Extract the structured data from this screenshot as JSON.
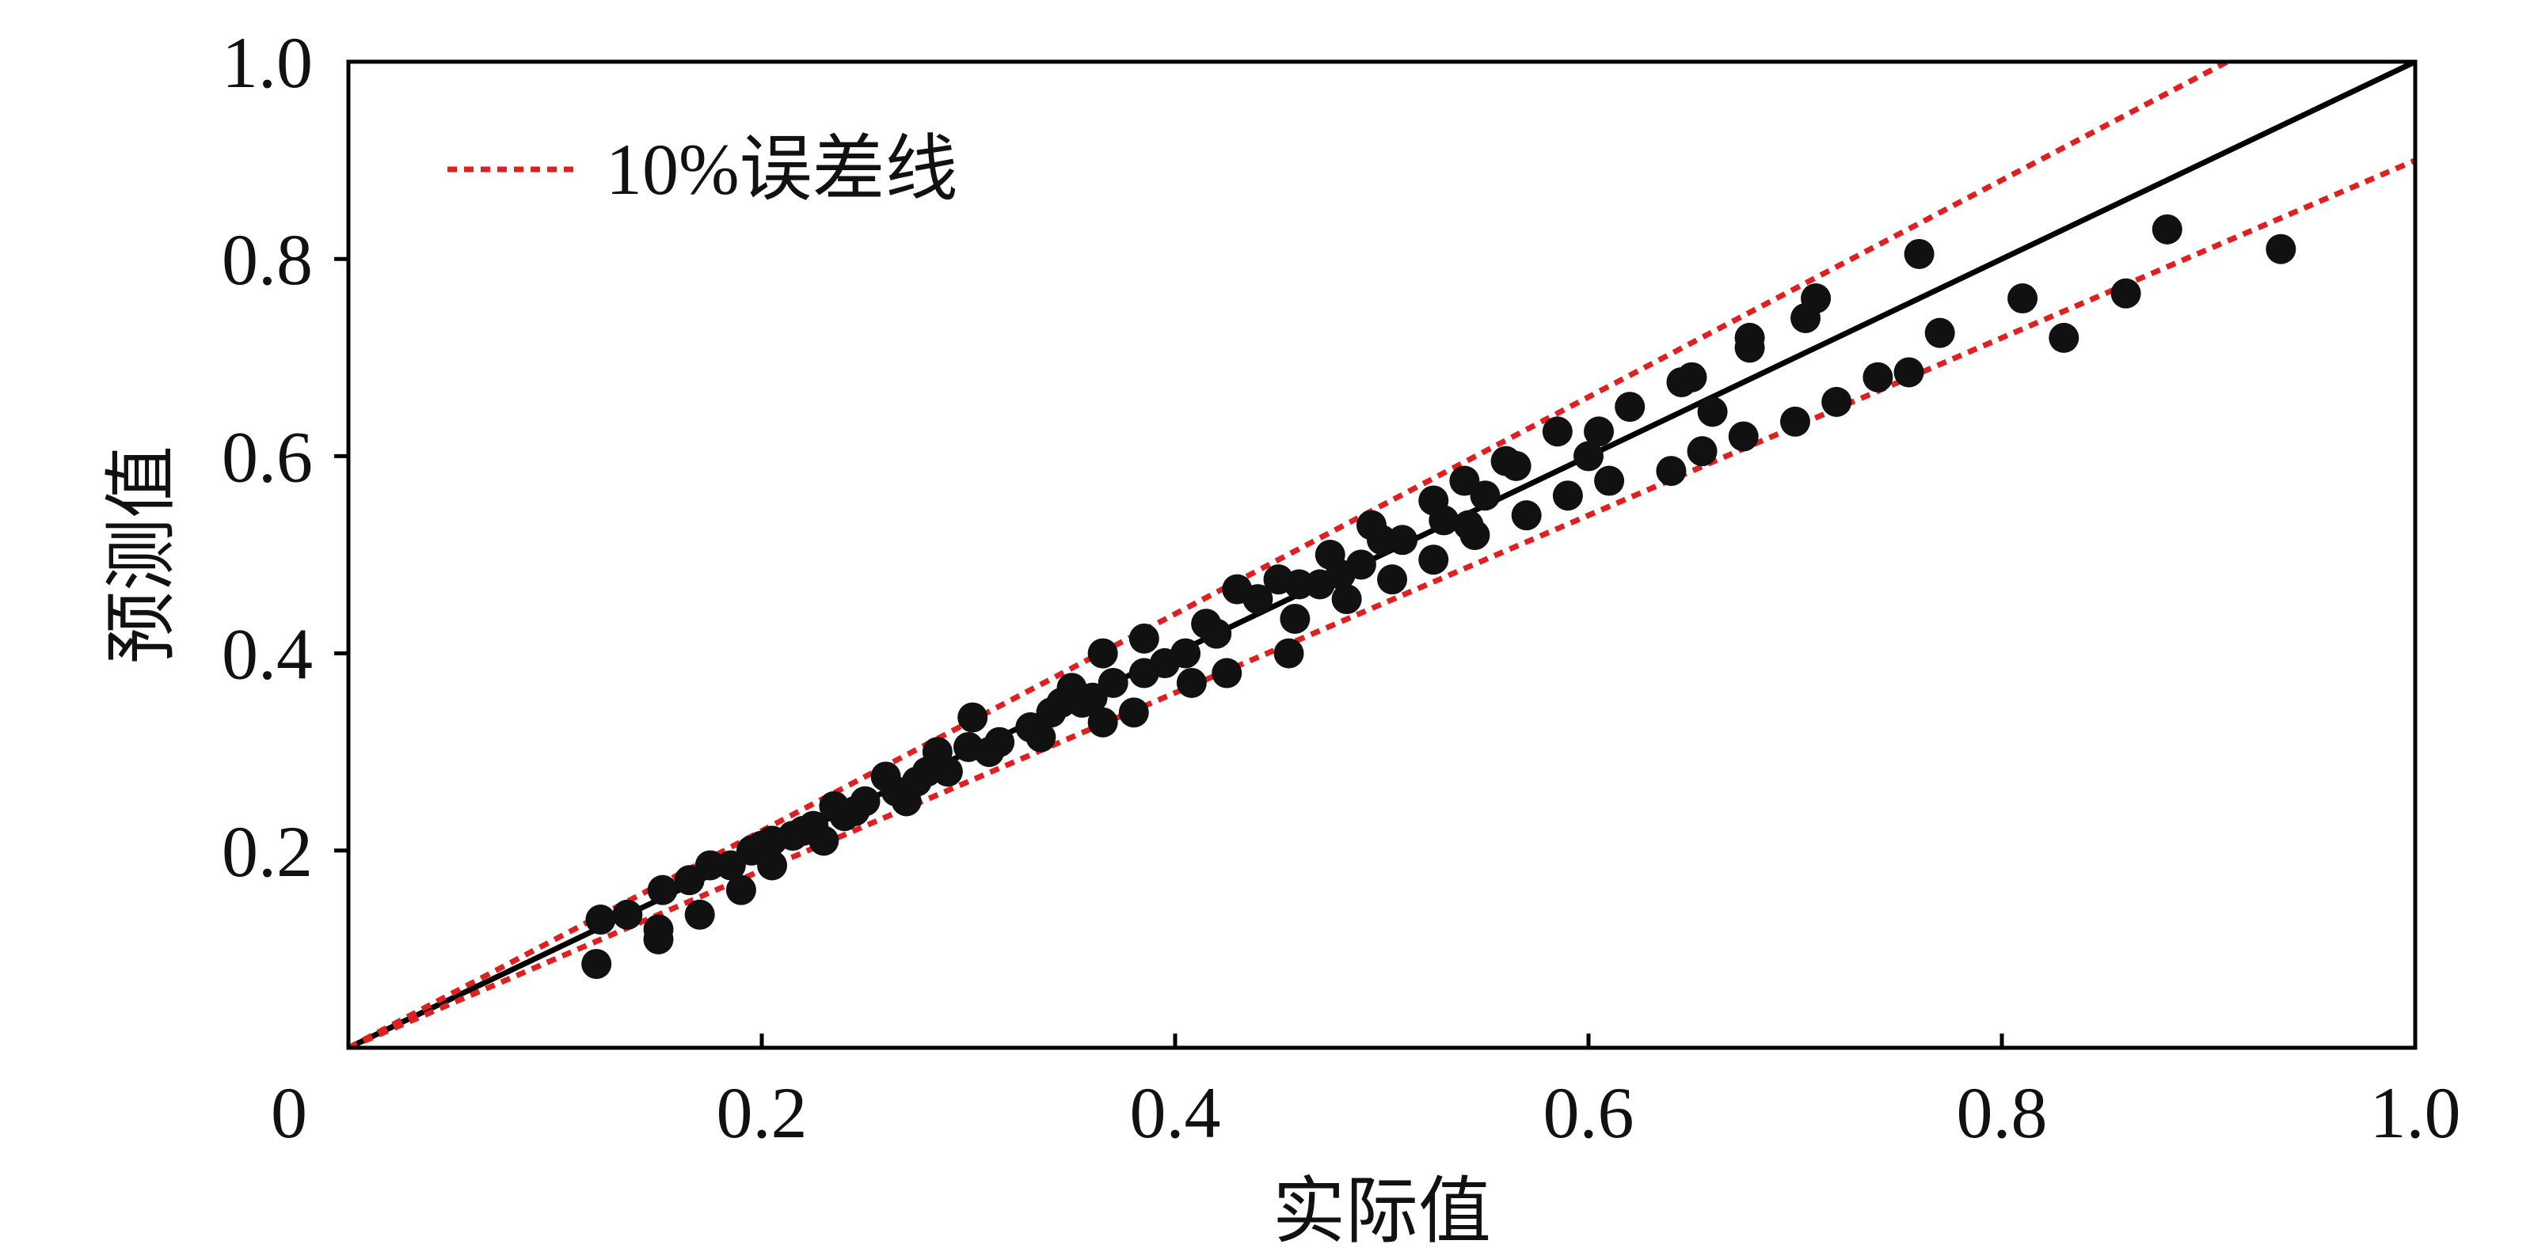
{
  "chart_data": {
    "type": "scatter",
    "xlabel": "实际值",
    "ylabel": "预测值",
    "xlim": [
      0,
      1.0
    ],
    "ylim": [
      0,
      1.0
    ],
    "xticks": [
      {
        "value": 0,
        "label": "0"
      },
      {
        "value": 0.2,
        "label": "0.2"
      },
      {
        "value": 0.4,
        "label": "0.4"
      },
      {
        "value": 0.6,
        "label": "0.6"
      },
      {
        "value": 0.8,
        "label": "0.8"
      },
      {
        "value": 1.0,
        "label": "1.0"
      }
    ],
    "yticks": [
      {
        "value": 0.2,
        "label": "0.2"
      },
      {
        "value": 0.4,
        "label": "0.4"
      },
      {
        "value": 0.6,
        "label": "0.6"
      },
      {
        "value": 0.8,
        "label": "0.8"
      },
      {
        "value": 1.0,
        "label": "1.0"
      }
    ],
    "grid": false,
    "legend": {
      "position": "top-left",
      "label": "10%误差线"
    },
    "reference_lines": [
      {
        "kind": "identity",
        "slope": 1.0,
        "style": "solid",
        "color": "#000000"
      },
      {
        "kind": "error_upper",
        "slope": 1.1,
        "style": "dotted",
        "color": "#e02020"
      },
      {
        "kind": "error_lower",
        "slope": 0.9,
        "style": "dotted",
        "color": "#e02020"
      }
    ],
    "points": [
      [
        0.12,
        0.085
      ],
      [
        0.122,
        0.13
      ],
      [
        0.135,
        0.135
      ],
      [
        0.15,
        0.12
      ],
      [
        0.15,
        0.11
      ],
      [
        0.152,
        0.16
      ],
      [
        0.165,
        0.17
      ],
      [
        0.17,
        0.135
      ],
      [
        0.175,
        0.185
      ],
      [
        0.185,
        0.185
      ],
      [
        0.19,
        0.16
      ],
      [
        0.195,
        0.2
      ],
      [
        0.2,
        0.205
      ],
      [
        0.205,
        0.21
      ],
      [
        0.205,
        0.185
      ],
      [
        0.215,
        0.215
      ],
      [
        0.22,
        0.22
      ],
      [
        0.225,
        0.225
      ],
      [
        0.23,
        0.21
      ],
      [
        0.235,
        0.245
      ],
      [
        0.24,
        0.235
      ],
      [
        0.245,
        0.24
      ],
      [
        0.25,
        0.25
      ],
      [
        0.26,
        0.275
      ],
      [
        0.265,
        0.26
      ],
      [
        0.27,
        0.25
      ],
      [
        0.275,
        0.27
      ],
      [
        0.28,
        0.28
      ],
      [
        0.285,
        0.3
      ],
      [
        0.29,
        0.28
      ],
      [
        0.3,
        0.305
      ],
      [
        0.302,
        0.335
      ],
      [
        0.31,
        0.3
      ],
      [
        0.315,
        0.31
      ],
      [
        0.33,
        0.325
      ],
      [
        0.335,
        0.315
      ],
      [
        0.34,
        0.34
      ],
      [
        0.345,
        0.35
      ],
      [
        0.35,
        0.365
      ],
      [
        0.355,
        0.35
      ],
      [
        0.36,
        0.355
      ],
      [
        0.365,
        0.33
      ],
      [
        0.365,
        0.4
      ],
      [
        0.37,
        0.37
      ],
      [
        0.38,
        0.34
      ],
      [
        0.385,
        0.38
      ],
      [
        0.385,
        0.415
      ],
      [
        0.395,
        0.39
      ],
      [
        0.405,
        0.4
      ],
      [
        0.408,
        0.37
      ],
      [
        0.415,
        0.43
      ],
      [
        0.42,
        0.42
      ],
      [
        0.425,
        0.38
      ],
      [
        0.43,
        0.465
      ],
      [
        0.44,
        0.455
      ],
      [
        0.45,
        0.475
      ],
      [
        0.455,
        0.4
      ],
      [
        0.458,
        0.435
      ],
      [
        0.46,
        0.47
      ],
      [
        0.47,
        0.47
      ],
      [
        0.475,
        0.5
      ],
      [
        0.48,
        0.48
      ],
      [
        0.483,
        0.455
      ],
      [
        0.49,
        0.49
      ],
      [
        0.495,
        0.53
      ],
      [
        0.5,
        0.515
      ],
      [
        0.505,
        0.475
      ],
      [
        0.51,
        0.515
      ],
      [
        0.525,
        0.495
      ],
      [
        0.525,
        0.555
      ],
      [
        0.53,
        0.535
      ],
      [
        0.54,
        0.575
      ],
      [
        0.542,
        0.53
      ],
      [
        0.545,
        0.52
      ],
      [
        0.55,
        0.56
      ],
      [
        0.56,
        0.595
      ],
      [
        0.565,
        0.59
      ],
      [
        0.57,
        0.54
      ],
      [
        0.585,
        0.625
      ],
      [
        0.59,
        0.56
      ],
      [
        0.6,
        0.6
      ],
      [
        0.605,
        0.625
      ],
      [
        0.61,
        0.575
      ],
      [
        0.62,
        0.65
      ],
      [
        0.64,
        0.585
      ],
      [
        0.645,
        0.675
      ],
      [
        0.65,
        0.68
      ],
      [
        0.655,
        0.605
      ],
      [
        0.66,
        0.645
      ],
      [
        0.675,
        0.62
      ],
      [
        0.678,
        0.71
      ],
      [
        0.678,
        0.72
      ],
      [
        0.7,
        0.635
      ],
      [
        0.705,
        0.74
      ],
      [
        0.71,
        0.76
      ],
      [
        0.72,
        0.655
      ],
      [
        0.74,
        0.68
      ],
      [
        0.755,
        0.685
      ],
      [
        0.76,
        0.805
      ],
      [
        0.77,
        0.725
      ],
      [
        0.81,
        0.76
      ],
      [
        0.83,
        0.72
      ],
      [
        0.86,
        0.765
      ],
      [
        0.88,
        0.83
      ],
      [
        0.935,
        0.81
      ]
    ]
  }
}
